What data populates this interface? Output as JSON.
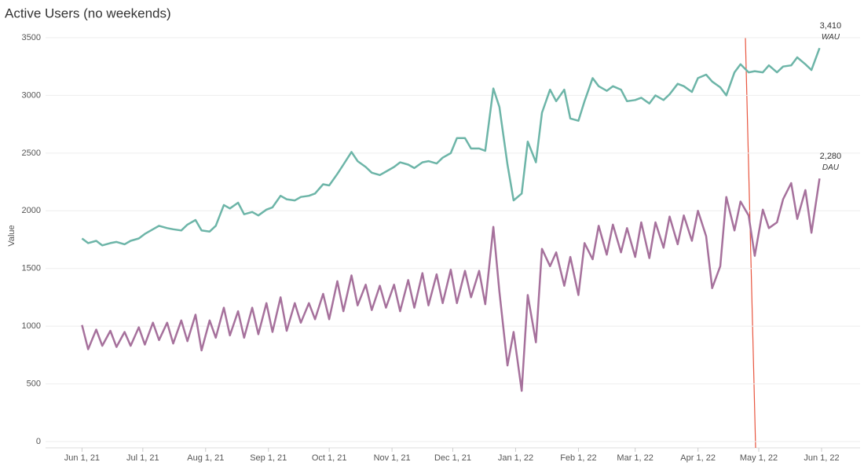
{
  "chart_data": {
    "type": "line",
    "title": "Active Users (no weekends)",
    "y_label": "Value",
    "x": [
      "2021-06-01",
      "2021-06-04",
      "2021-06-08",
      "2021-06-11",
      "2021-06-15",
      "2021-06-18",
      "2021-06-22",
      "2021-06-25",
      "2021-06-29",
      "2021-07-02",
      "2021-07-06",
      "2021-07-09",
      "2021-07-13",
      "2021-07-16",
      "2021-07-20",
      "2021-07-23",
      "2021-07-27",
      "2021-07-30",
      "2021-08-03",
      "2021-08-06",
      "2021-08-10",
      "2021-08-13",
      "2021-08-17",
      "2021-08-20",
      "2021-08-24",
      "2021-08-27",
      "2021-08-31",
      "2021-09-03",
      "2021-09-07",
      "2021-09-10",
      "2021-09-14",
      "2021-09-17",
      "2021-09-21",
      "2021-09-24",
      "2021-09-28",
      "2021-10-01",
      "2021-10-05",
      "2021-10-08",
      "2021-10-12",
      "2021-10-15",
      "2021-10-19",
      "2021-10-22",
      "2021-10-26",
      "2021-10-29",
      "2021-11-02",
      "2021-11-05",
      "2021-11-09",
      "2021-11-12",
      "2021-11-16",
      "2021-11-19",
      "2021-11-23",
      "2021-11-26",
      "2021-11-30",
      "2021-12-03",
      "2021-12-07",
      "2021-12-10",
      "2021-12-14",
      "2021-12-17",
      "2021-12-21",
      "2021-12-24",
      "2021-12-28",
      "2021-12-31",
      "2022-01-04",
      "2022-01-07",
      "2022-01-11",
      "2022-01-14",
      "2022-01-18",
      "2022-01-21",
      "2022-01-25",
      "2022-01-28",
      "2022-02-01",
      "2022-02-04",
      "2022-02-08",
      "2022-02-11",
      "2022-02-15",
      "2022-02-18",
      "2022-02-22",
      "2022-02-25",
      "2022-03-01",
      "2022-03-04",
      "2022-03-08",
      "2022-03-11",
      "2022-03-15",
      "2022-03-18",
      "2022-03-22",
      "2022-03-25",
      "2022-03-29",
      "2022-04-01",
      "2022-04-05",
      "2022-04-08",
      "2022-04-12",
      "2022-04-15",
      "2022-04-19",
      "2022-04-22",
      "2022-04-26",
      "2022-04-29",
      "2022-05-03",
      "2022-05-06",
      "2022-05-10",
      "2022-05-13",
      "2022-05-17",
      "2022-05-20",
      "2022-05-24",
      "2022-05-27",
      "2022-05-31"
    ],
    "series": [
      {
        "name": "WAU",
        "color": "#6db5a8",
        "values": [
          1760,
          1720,
          1740,
          1700,
          1720,
          1730,
          1710,
          1740,
          1760,
          1800,
          1840,
          1870,
          1850,
          1840,
          1830,
          1880,
          1920,
          1830,
          1820,
          1870,
          2050,
          2020,
          2070,
          1970,
          1990,
          1960,
          2010,
          2030,
          2130,
          2100,
          2090,
          2120,
          2130,
          2150,
          2230,
          2220,
          2320,
          2400,
          2510,
          2430,
          2380,
          2330,
          2310,
          2340,
          2380,
          2420,
          2400,
          2370,
          2420,
          2430,
          2410,
          2460,
          2500,
          2630,
          2630,
          2540,
          2540,
          2520,
          3060,
          2900,
          2400,
          2090,
          2150,
          2600,
          2420,
          2850,
          3050,
          2950,
          3050,
          2800,
          2780,
          2950,
          3150,
          3080,
          3040,
          3080,
          3050,
          2950,
          2960,
          2980,
          2930,
          3000,
          2960,
          3010,
          3100,
          3080,
          3030,
          3150,
          3180,
          3120,
          3070,
          3000,
          3200,
          3270,
          3200,
          3210,
          3200,
          3260,
          3200,
          3250,
          3260,
          3330,
          3270,
          3220,
          3410
        ],
        "value_labels": [
          null,
          null,
          null,
          null,
          null,
          null,
          null,
          null,
          null,
          null,
          null,
          null,
          null,
          null,
          null,
          null,
          null,
          null,
          null,
          null,
          null,
          null,
          null,
          null,
          null,
          null,
          null,
          null,
          null,
          null,
          null,
          null,
          null,
          null,
          null,
          null,
          null,
          null,
          null,
          null,
          null,
          null,
          null,
          null,
          null,
          null,
          null,
          null,
          null,
          null,
          null,
          null,
          null,
          null,
          null,
          null,
          null,
          null,
          null,
          null,
          null,
          null,
          null,
          null,
          null,
          null,
          null,
          null,
          null,
          null,
          null,
          null,
          null,
          null,
          null,
          null,
          null,
          null,
          null,
          null,
          null,
          null,
          null,
          null,
          null,
          null,
          null,
          null,
          null,
          null,
          null,
          null,
          null,
          null,
          null,
          null,
          null,
          null,
          null,
          null,
          null,
          null,
          null,
          null,
          "3,410"
        ]
      },
      {
        "name": "DAU",
        "color": "#a6719c",
        "values": [
          1010,
          800,
          970,
          830,
          960,
          820,
          950,
          830,
          990,
          840,
          1030,
          880,
          1030,
          850,
          1050,
          870,
          1100,
          790,
          1050,
          900,
          1160,
          920,
          1130,
          900,
          1160,
          930,
          1200,
          950,
          1250,
          960,
          1200,
          1030,
          1200,
          1060,
          1280,
          1060,
          1390,
          1130,
          1440,
          1180,
          1360,
          1140,
          1350,
          1160,
          1360,
          1130,
          1400,
          1160,
          1460,
          1180,
          1450,
          1200,
          1490,
          1200,
          1480,
          1250,
          1480,
          1190,
          1860,
          1300,
          660,
          950,
          440,
          1270,
          860,
          1670,
          1520,
          1640,
          1350,
          1600,
          1270,
          1720,
          1580,
          1870,
          1620,
          1880,
          1640,
          1850,
          1600,
          1900,
          1590,
          1900,
          1680,
          1950,
          1710,
          1960,
          1740,
          2000,
          1780,
          1330,
          1520,
          2120,
          1830,
          2080,
          1960,
          1610,
          2010,
          1850,
          1900,
          2100,
          2240,
          1930,
          2180,
          1810,
          2280
        ],
        "value_labels": [
          null,
          null,
          null,
          null,
          null,
          null,
          null,
          null,
          null,
          null,
          null,
          null,
          null,
          null,
          null,
          null,
          null,
          null,
          null,
          null,
          null,
          null,
          null,
          null,
          null,
          null,
          null,
          null,
          null,
          null,
          null,
          null,
          null,
          null,
          null,
          null,
          null,
          null,
          null,
          null,
          null,
          null,
          null,
          null,
          null,
          null,
          null,
          null,
          null,
          null,
          null,
          null,
          null,
          null,
          null,
          null,
          null,
          null,
          null,
          null,
          null,
          null,
          null,
          null,
          null,
          null,
          null,
          null,
          null,
          null,
          null,
          null,
          null,
          null,
          null,
          null,
          null,
          null,
          null,
          null,
          null,
          null,
          null,
          null,
          null,
          null,
          null,
          null,
          null,
          null,
          null,
          null,
          null,
          null,
          null,
          null,
          null,
          null,
          null,
          null,
          null,
          null,
          null,
          null,
          "2,280"
        ]
      }
    ],
    "xlim": [
      "2021-05-14",
      "2022-06-20"
    ],
    "xticks": [
      {
        "value": "2021-06-01",
        "label": "Jun 1, 21"
      },
      {
        "value": "2021-07-01",
        "label": "Jul 1, 21"
      },
      {
        "value": "2021-08-01",
        "label": "Aug 1, 21"
      },
      {
        "value": "2021-09-01",
        "label": "Sep 1, 21"
      },
      {
        "value": "2021-10-01",
        "label": "Oct 1, 21"
      },
      {
        "value": "2021-11-01",
        "label": "Nov 1, 21"
      },
      {
        "value": "2021-12-01",
        "label": "Dec 1, 21"
      },
      {
        "value": "2022-01-01",
        "label": "Jan 1, 22"
      },
      {
        "value": "2022-02-01",
        "label": "Feb 1, 22"
      },
      {
        "value": "2022-03-01",
        "label": "Mar 1, 22"
      },
      {
        "value": "2022-04-01",
        "label": "Apr 1, 22"
      },
      {
        "value": "2022-05-01",
        "label": "May 1, 22"
      },
      {
        "value": "2022-06-01",
        "label": "Jun 1, 22"
      }
    ],
    "ylim": [
      0,
      3500
    ],
    "yticks": [
      0,
      500,
      1000,
      1500,
      2000,
      2500,
      3000,
      3500
    ],
    "grid": true
  }
}
